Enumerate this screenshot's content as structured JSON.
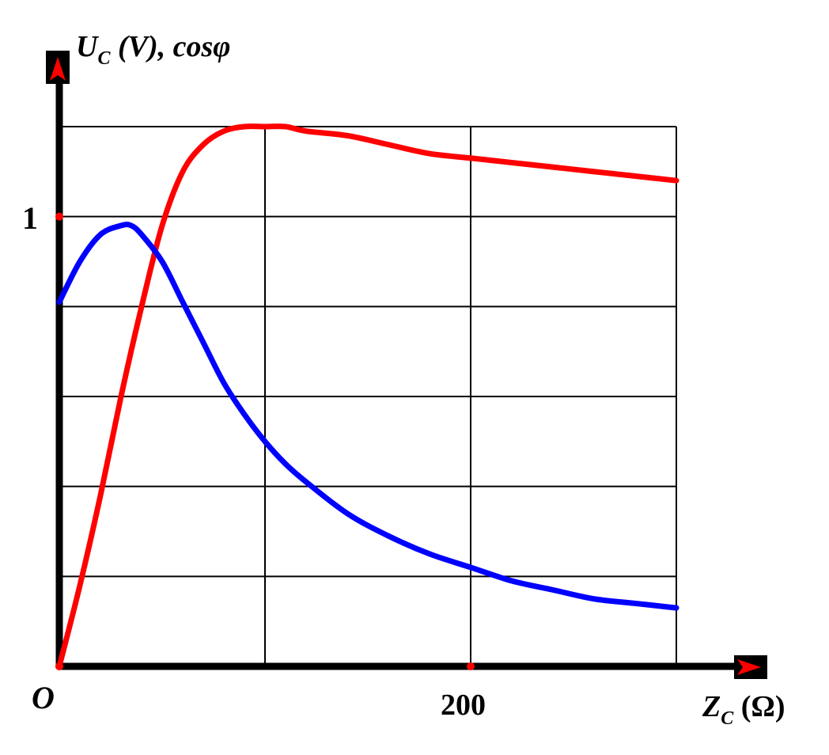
{
  "chart_data": {
    "type": "line",
    "xlabel": {
      "symbol": "Z",
      "sub": "C",
      "unit": " (Ω)"
    },
    "ylabel": {
      "symbol": "U",
      "sub": "C",
      "rest": " (V), cosφ"
    },
    "origin_label": "O",
    "x_tick_labels": [
      {
        "value": 200,
        "text": "200"
      }
    ],
    "y_tick_labels": [
      {
        "value": 1,
        "text": "1"
      }
    ],
    "xlim": [
      0,
      300
    ],
    "ylim": [
      0,
      1.3
    ],
    "grid_x": [
      100,
      200,
      300
    ],
    "grid_y": [
      0.2,
      0.4,
      0.6,
      0.8,
      1.0,
      1.2
    ],
    "x_axis_dots": [
      0,
      200
    ],
    "y_axis_dots": [
      0,
      1
    ],
    "grid": true,
    "series": [
      {
        "color": "#ff0000",
        "points": [
          [
            0,
            0
          ],
          [
            10,
            0.18
          ],
          [
            20,
            0.38
          ],
          [
            30,
            0.6
          ],
          [
            40,
            0.8
          ],
          [
            50,
            0.98
          ],
          [
            60,
            1.1
          ],
          [
            70,
            1.16
          ],
          [
            80,
            1.19
          ],
          [
            90,
            1.2
          ],
          [
            100,
            1.2
          ],
          [
            110,
            1.2
          ],
          [
            120,
            1.19
          ],
          [
            140,
            1.18
          ],
          [
            160,
            1.16
          ],
          [
            180,
            1.14
          ],
          [
            200,
            1.13
          ],
          [
            220,
            1.12
          ],
          [
            240,
            1.11
          ],
          [
            260,
            1.1
          ],
          [
            280,
            1.09
          ],
          [
            300,
            1.08
          ]
        ]
      },
      {
        "color": "#0000ff",
        "points": [
          [
            0,
            0.81
          ],
          [
            10,
            0.9
          ],
          [
            20,
            0.96
          ],
          [
            30,
            0.98
          ],
          [
            35,
            0.98
          ],
          [
            40,
            0.96
          ],
          [
            50,
            0.9
          ],
          [
            60,
            0.81
          ],
          [
            70,
            0.72
          ],
          [
            80,
            0.63
          ],
          [
            90,
            0.56
          ],
          [
            100,
            0.5
          ],
          [
            110,
            0.45
          ],
          [
            120,
            0.41
          ],
          [
            140,
            0.34
          ],
          [
            160,
            0.29
          ],
          [
            180,
            0.25
          ],
          [
            200,
            0.22
          ],
          [
            220,
            0.19
          ],
          [
            240,
            0.17
          ],
          [
            260,
            0.15
          ],
          [
            280,
            0.14
          ],
          [
            300,
            0.13
          ]
        ]
      }
    ]
  }
}
